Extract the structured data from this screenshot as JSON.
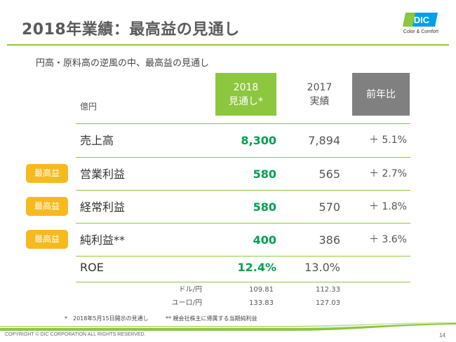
{
  "slide": {
    "title": "2018年業績：最高益の見通し",
    "subtitle": "円高・原料高の逆風の中、最高益の見通し"
  },
  "logo": {
    "mark_text": "DIC",
    "tagline": "Color & Comfort",
    "colors": [
      "#8dc63f",
      "#00a0e9"
    ]
  },
  "table": {
    "unit": "億円",
    "columns": {
      "forecast": [
        "2018",
        "見通し*"
      ],
      "actual": [
        "2017",
        "実績"
      ],
      "ratio": "前年比"
    },
    "rows": [
      {
        "label": "売上高",
        "forecast": "8,300",
        "actual": "7,894",
        "ratio": "＋ 5.1%",
        "badge": ""
      },
      {
        "label": "営業利益",
        "forecast": "580",
        "actual": "565",
        "ratio": "＋ 2.7%",
        "badge": "最高益"
      },
      {
        "label": "経常利益",
        "forecast": "580",
        "actual": "570",
        "ratio": "＋ 1.8%",
        "badge": "最高益"
      },
      {
        "label": "純利益**",
        "forecast": "400",
        "actual": "386",
        "ratio": "＋ 3.6%",
        "badge": "最高益"
      },
      {
        "label": "ROE",
        "forecast": "12.4%",
        "actual": "13.0%",
        "ratio": "",
        "badge": ""
      }
    ],
    "fx_rates": [
      {
        "label": "ドル/円",
        "forecast": "109.81",
        "actual": "112.33"
      },
      {
        "label": "ユーロ/円",
        "forecast": "133.83",
        "actual": "127.03"
      }
    ]
  },
  "footnotes": {
    "note1": "*　2018年5月15日開示の見通し",
    "note2": "** 親会社株主に帰属する当期純利益"
  },
  "footer": {
    "copyright": "COPYRIGHT © DIC CORPORATION ALL RIGHTS RESERVED.",
    "page": "14"
  },
  "colors": {
    "accent_green": "#8dc63f",
    "value_green": "#00a050",
    "badge_yellow": "#f6ba1e",
    "header_gray": "#808080"
  }
}
